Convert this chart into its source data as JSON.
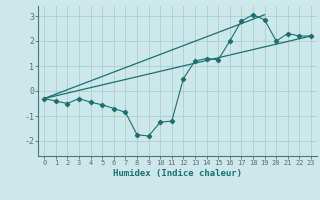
{
  "xlabel": "Humidex (Indice chaleur)",
  "background_color": "#cce8e8",
  "grid_color": "#aacece",
  "line_color": "#1a7070",
  "spine_color": "#557070",
  "xlim": [
    -0.5,
    23.5
  ],
  "ylim": [
    -2.6,
    3.4
  ],
  "yticks": [
    -2,
    -1,
    0,
    1,
    2,
    3
  ],
  "xticks": [
    0,
    1,
    2,
    3,
    4,
    5,
    6,
    7,
    8,
    9,
    10,
    11,
    12,
    13,
    14,
    15,
    16,
    17,
    18,
    19,
    20,
    21,
    22,
    23
  ],
  "series": [
    {
      "x": [
        0,
        1,
        2,
        3,
        4,
        5,
        6,
        7,
        8,
        9,
        10,
        11,
        12,
        13,
        14,
        15,
        16,
        17,
        18,
        19,
        20,
        21,
        22,
        23
      ],
      "y": [
        -0.3,
        -0.4,
        -0.5,
        -0.3,
        -0.45,
        -0.55,
        -0.7,
        -0.85,
        -1.75,
        -1.8,
        -1.25,
        -1.2,
        0.5,
        1.2,
        1.3,
        1.25,
        2.0,
        2.8,
        3.05,
        2.85,
        2.0,
        2.3,
        2.2,
        2.2
      ],
      "with_markers": true
    },
    {
      "x": [
        0,
        23
      ],
      "y": [
        -0.3,
        2.2
      ],
      "with_markers": false
    },
    {
      "x": [
        0,
        19
      ],
      "y": [
        -0.3,
        3.05
      ],
      "with_markers": false
    }
  ]
}
